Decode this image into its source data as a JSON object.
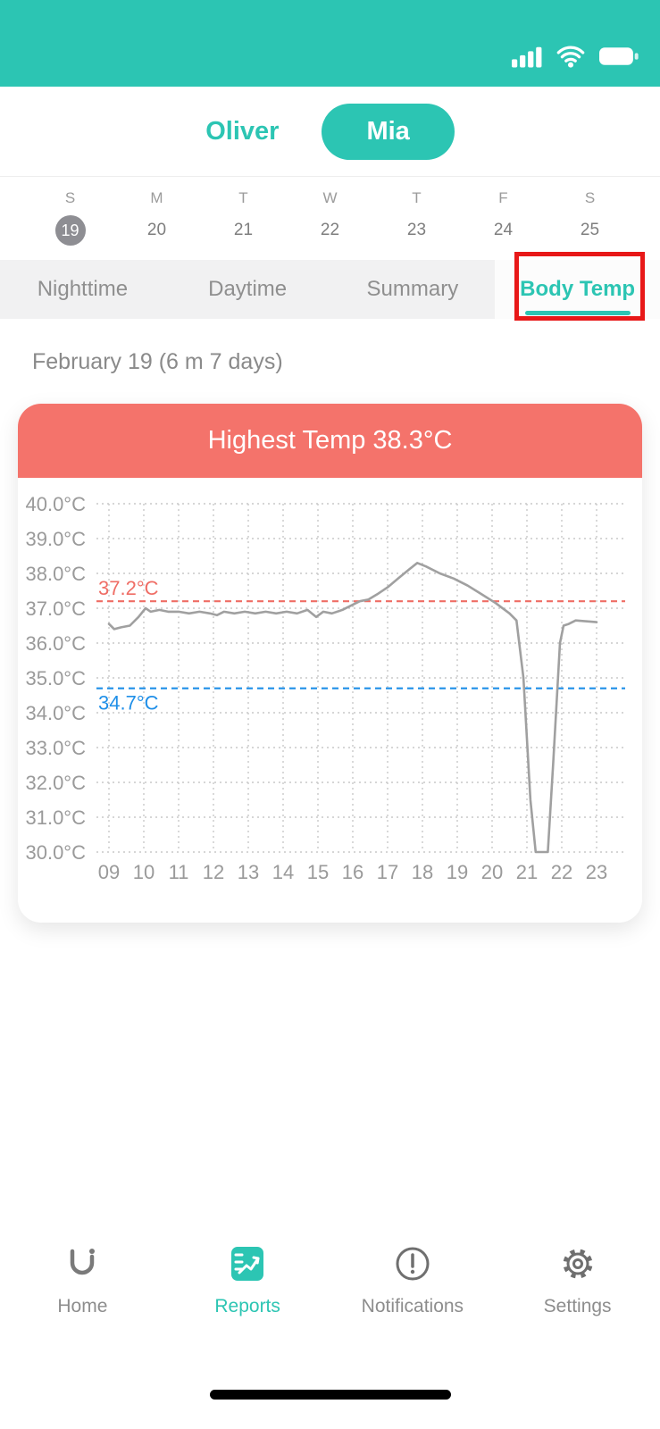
{
  "colors": {
    "accent": "#2cc5b3",
    "banner": "#f4736b",
    "annotation": "#e81818",
    "line": "#a0a0a0",
    "threshold_high": "#ef6d65",
    "threshold_low": "#1f8fe8"
  },
  "status_bar": {
    "icons": [
      "cell-signal-icon",
      "wifi-icon",
      "battery-icon"
    ]
  },
  "profiles": {
    "items": [
      {
        "label": "Oliver",
        "active": false
      },
      {
        "label": "Mia",
        "active": true
      }
    ]
  },
  "calendar": {
    "days": [
      {
        "dow": "S",
        "date": "19",
        "selected": true
      },
      {
        "dow": "M",
        "date": "20",
        "selected": false
      },
      {
        "dow": "T",
        "date": "21",
        "selected": false
      },
      {
        "dow": "W",
        "date": "22",
        "selected": false
      },
      {
        "dow": "T",
        "date": "23",
        "selected": false
      },
      {
        "dow": "F",
        "date": "24",
        "selected": false
      },
      {
        "dow": "S",
        "date": "25",
        "selected": false
      }
    ]
  },
  "report_tabs": {
    "items": [
      {
        "label": "Nighttime",
        "active": false
      },
      {
        "label": "Daytime",
        "active": false
      },
      {
        "label": "Summary",
        "active": false
      },
      {
        "label": "Body Temp",
        "active": true,
        "annotated": true
      }
    ]
  },
  "period_label": "February 19 (6 m 7 days)",
  "chart_data": {
    "type": "line",
    "title": "Highest Temp 38.3°C",
    "ylim": [
      30,
      40
    ],
    "x_range": [
      9,
      23
    ],
    "grid": true,
    "y_ticks": [
      "40.0°C",
      "39.0°C",
      "38.0°C",
      "37.0°C",
      "36.0°C",
      "35.0°C",
      "34.0°C",
      "33.0°C",
      "32.0°C",
      "31.0°C",
      "30.0°C"
    ],
    "x_ticks": [
      "09",
      "10",
      "11",
      "12",
      "13",
      "14",
      "15",
      "16",
      "17",
      "18",
      "19",
      "20",
      "21",
      "22",
      "23"
    ],
    "thresholds": [
      {
        "label": "37.2°C",
        "value": 37.2,
        "color": "#ef6d65",
        "position": "above"
      },
      {
        "label": "34.7°C",
        "value": 34.7,
        "color": "#1f8fe8",
        "position": "below"
      }
    ],
    "series": [
      {
        "name": "body-temperature",
        "color": "#a0a0a0",
        "points": [
          [
            9.0,
            36.55
          ],
          [
            9.15,
            36.4
          ],
          [
            9.35,
            36.45
          ],
          [
            9.6,
            36.5
          ],
          [
            9.85,
            36.75
          ],
          [
            10.05,
            37.0
          ],
          [
            10.2,
            36.9
          ],
          [
            10.45,
            36.95
          ],
          [
            10.7,
            36.9
          ],
          [
            11.0,
            36.9
          ],
          [
            11.3,
            36.85
          ],
          [
            11.6,
            36.9
          ],
          [
            11.9,
            36.85
          ],
          [
            12.1,
            36.8
          ],
          [
            12.3,
            36.9
          ],
          [
            12.6,
            36.85
          ],
          [
            12.9,
            36.9
          ],
          [
            13.2,
            36.85
          ],
          [
            13.5,
            36.9
          ],
          [
            13.8,
            36.85
          ],
          [
            14.1,
            36.9
          ],
          [
            14.4,
            36.85
          ],
          [
            14.7,
            36.95
          ],
          [
            14.95,
            36.75
          ],
          [
            15.15,
            36.9
          ],
          [
            15.4,
            36.85
          ],
          [
            15.7,
            36.95
          ],
          [
            16.0,
            37.1
          ],
          [
            16.2,
            37.2
          ],
          [
            16.45,
            37.25
          ],
          [
            16.7,
            37.4
          ],
          [
            17.0,
            37.6
          ],
          [
            17.3,
            37.85
          ],
          [
            17.6,
            38.1
          ],
          [
            17.85,
            38.3
          ],
          [
            18.1,
            38.2
          ],
          [
            18.5,
            38.0
          ],
          [
            18.9,
            37.85
          ],
          [
            19.3,
            37.65
          ],
          [
            19.7,
            37.4
          ],
          [
            20.1,
            37.15
          ],
          [
            20.5,
            36.85
          ],
          [
            20.7,
            36.65
          ],
          [
            20.9,
            35.0
          ],
          [
            21.1,
            31.5
          ],
          [
            21.25,
            30.0
          ],
          [
            21.6,
            30.0
          ],
          [
            21.75,
            32.5
          ],
          [
            21.95,
            36.0
          ],
          [
            22.05,
            36.5
          ],
          [
            22.2,
            36.55
          ],
          [
            22.4,
            36.65
          ],
          [
            23.0,
            36.6
          ]
        ]
      }
    ]
  },
  "bottom_nav": {
    "items": [
      {
        "label": "Home",
        "icon": "home-logo-icon",
        "active": false
      },
      {
        "label": "Reports",
        "icon": "reports-icon",
        "active": true
      },
      {
        "label": "Notifications",
        "icon": "notifications-icon",
        "active": false
      },
      {
        "label": "Settings",
        "icon": "settings-icon",
        "active": false
      }
    ]
  }
}
